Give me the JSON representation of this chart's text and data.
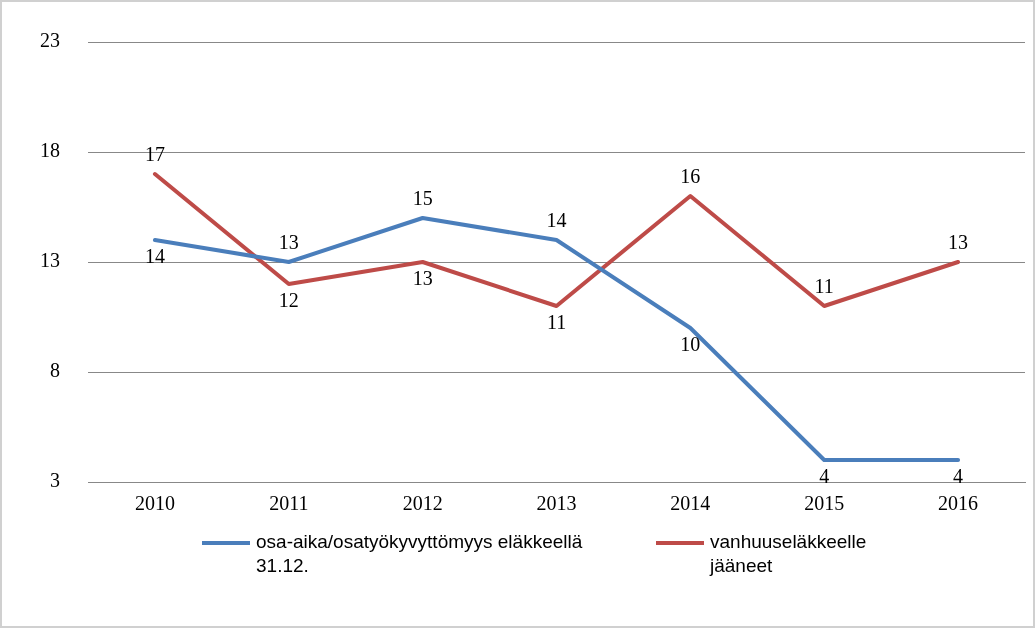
{
  "chart_data": {
    "type": "line",
    "categories": [
      "2010",
      "2011",
      "2012",
      "2013",
      "2014",
      "2015",
      "2016"
    ],
    "series": [
      {
        "name": "osa-aika/osatyökyvyttömyys eläkkeellä 31.12.",
        "color": "#4a7ebb",
        "values": [
          14,
          13,
          15,
          14,
          10,
          4,
          4
        ]
      },
      {
        "name": "vanhuuseläkkeelle jääneet",
        "color": "#be4b48",
        "values": [
          17,
          12,
          13,
          11,
          16,
          11,
          13
        ]
      }
    ],
    "ylim": [
      3,
      23
    ],
    "yticks": [
      3,
      8,
      13,
      18,
      23
    ],
    "grid": "y",
    "legend": "bottom",
    "data_labels": true,
    "marker": "none",
    "line_style": "solid"
  }
}
